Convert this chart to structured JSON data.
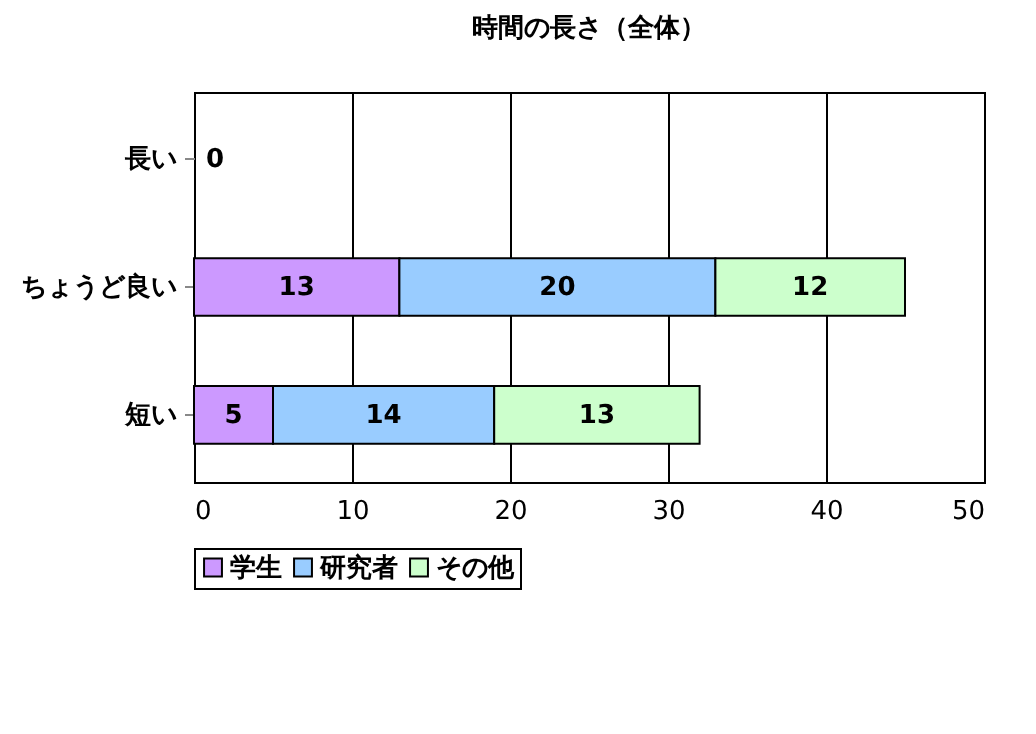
{
  "chart_data": {
    "type": "bar",
    "orientation": "horizontal",
    "stacked": true,
    "title": "時間の長さ（全体）",
    "categories": [
      "長い",
      "ちょうど良い",
      "短い"
    ],
    "series": [
      {
        "name": "学生",
        "color": "#cc99ff",
        "values": [
          0,
          13,
          5
        ],
        "value_labels": [
          "0",
          "13",
          "5"
        ]
      },
      {
        "name": "研究者",
        "color": "#99ccff",
        "values": [
          0,
          20,
          14
        ],
        "value_labels": [
          null,
          "20",
          "14"
        ]
      },
      {
        "name": "その他",
        "color": "#ccffcc",
        "values": [
          0,
          12,
          13
        ],
        "value_labels": [
          null,
          "12",
          "13"
        ]
      }
    ],
    "xlim": [
      0,
      50
    ],
    "xticks": [
      0,
      10,
      20,
      30,
      40,
      50
    ],
    "grid": "x",
    "legend": "bottom"
  }
}
